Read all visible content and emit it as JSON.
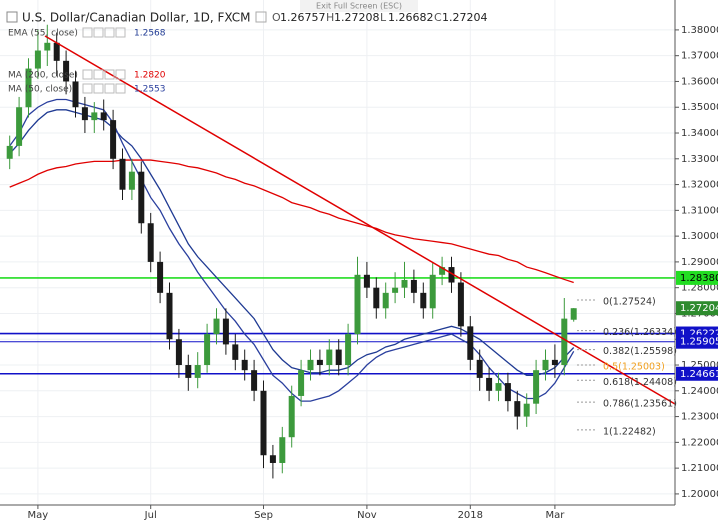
{
  "chart_data": {
    "type": "candlestick",
    "title": "U.S. Dollar/Canadian Dollar, 1D, FXCM",
    "banner": "Exit Full Screen (ESC)",
    "header_keys": [
      "O",
      "H",
      "L",
      "C"
    ],
    "categories": [
      null,
      null,
      null,
      "May",
      null,
      null,
      null,
      null,
      null,
      null,
      null,
      null,
      null,
      null,
      null,
      "Jul",
      null,
      null,
      null,
      null,
      null,
      null,
      null,
      null,
      null,
      null,
      null,
      "Sep",
      null,
      null,
      null,
      null,
      null,
      null,
      null,
      null,
      null,
      null,
      "Nov",
      null,
      null,
      null,
      null,
      null,
      null,
      null,
      null,
      null,
      null,
      "2018",
      null,
      null,
      null,
      null,
      null,
      null,
      null,
      null,
      "Mar",
      null,
      null
    ],
    "open": [
      1.33,
      1.335,
      1.35,
      1.365,
      1.372,
      1.375,
      1.368,
      1.36,
      1.35,
      1.345,
      1.348,
      1.345,
      1.33,
      1.318,
      1.325,
      1.305,
      1.29,
      1.278,
      1.26,
      1.25,
      1.245,
      1.25,
      1.262,
      1.268,
      1.258,
      1.252,
      1.248,
      1.24,
      1.215,
      1.212,
      1.222,
      1.238,
      1.248,
      1.252,
      1.25,
      1.256,
      1.25,
      1.262,
      1.285,
      1.28,
      1.272,
      1.278,
      1.28,
      1.283,
      1.278,
      1.272,
      1.285,
      1.288,
      1.282,
      1.265,
      1.252,
      1.245,
      1.24,
      1.243,
      1.236,
      1.23,
      1.235,
      1.248,
      1.252,
      1.25,
      1.26757
    ],
    "high": [
      1.339,
      1.354,
      1.369,
      1.38,
      1.382,
      1.379,
      1.372,
      1.364,
      1.354,
      1.352,
      1.353,
      1.349,
      1.334,
      1.33,
      1.329,
      1.309,
      1.294,
      1.282,
      1.264,
      1.254,
      1.255,
      1.266,
      1.272,
      1.272,
      1.262,
      1.256,
      1.252,
      1.244,
      1.219,
      1.226,
      1.242,
      1.252,
      1.256,
      1.256,
      1.26,
      1.26,
      1.266,
      1.292,
      1.29,
      1.284,
      1.282,
      1.286,
      1.29,
      1.287,
      1.282,
      1.29,
      1.292,
      1.292,
      1.286,
      1.269,
      1.256,
      1.249,
      1.247,
      1.247,
      1.24,
      1.239,
      1.252,
      1.256,
      1.258,
      1.276,
      1.27208
    ],
    "low": [
      1.326,
      1.331,
      1.346,
      1.361,
      1.366,
      1.362,
      1.355,
      1.346,
      1.34,
      1.34,
      1.341,
      1.326,
      1.314,
      1.314,
      1.301,
      1.286,
      1.274,
      1.256,
      1.245,
      1.24,
      1.241,
      1.247,
      1.258,
      1.254,
      1.248,
      1.244,
      1.236,
      1.21,
      1.206,
      1.208,
      1.218,
      1.234,
      1.244,
      1.246,
      1.246,
      1.246,
      1.246,
      1.258,
      1.276,
      1.268,
      1.268,
      1.274,
      1.276,
      1.274,
      1.268,
      1.268,
      1.281,
      1.278,
      1.261,
      1.248,
      1.24,
      1.236,
      1.236,
      1.232,
      1.225,
      1.226,
      1.231,
      1.244,
      1.245,
      1.246,
      1.26682
    ],
    "close": [
      1.335,
      1.35,
      1.365,
      1.372,
      1.375,
      1.368,
      1.36,
      1.35,
      1.345,
      1.348,
      1.345,
      1.33,
      1.318,
      1.325,
      1.305,
      1.29,
      1.278,
      1.26,
      1.25,
      1.245,
      1.25,
      1.262,
      1.268,
      1.258,
      1.252,
      1.248,
      1.24,
      1.215,
      1.212,
      1.222,
      1.238,
      1.248,
      1.252,
      1.25,
      1.256,
      1.25,
      1.262,
      1.285,
      1.28,
      1.272,
      1.278,
      1.28,
      1.283,
      1.278,
      1.272,
      1.285,
      1.288,
      1.282,
      1.265,
      1.252,
      1.245,
      1.24,
      1.243,
      1.236,
      1.23,
      1.235,
      1.248,
      1.252,
      1.25,
      1.268,
      1.27204
    ],
    "up_color": "#3c9a3c",
    "down_color": "#1a1a1a",
    "series": [
      {
        "name": "EMA (55, close)",
        "last_label": "1.2568",
        "color": "#1f3a93",
        "values": [
          1.332,
          1.336,
          1.341,
          1.345,
          1.348,
          1.349,
          1.349,
          1.348,
          1.347,
          1.346,
          1.345,
          1.342,
          1.338,
          1.335,
          1.33,
          1.324,
          1.318,
          1.311,
          1.304,
          1.297,
          1.292,
          1.288,
          1.284,
          1.28,
          1.276,
          1.272,
          1.268,
          1.262,
          1.256,
          1.252,
          1.249,
          1.248,
          1.247,
          1.247,
          1.248,
          1.248,
          1.249,
          1.252,
          1.254,
          1.255,
          1.257,
          1.258,
          1.26,
          1.261,
          1.262,
          1.263,
          1.264,
          1.265,
          1.264,
          1.262,
          1.26,
          1.257,
          1.254,
          1.251,
          1.248,
          1.246,
          1.246,
          1.247,
          1.249,
          1.253,
          1.2568
        ]
      },
      {
        "name": "MA (200, close)",
        "last_label": "1.2820",
        "color": "#e00000",
        "values": [
          1.319,
          1.3205,
          1.322,
          1.324,
          1.3255,
          1.3265,
          1.327,
          1.328,
          1.3285,
          1.329,
          1.329,
          1.329,
          1.3295,
          1.3295,
          1.3295,
          1.3295,
          1.329,
          1.3285,
          1.328,
          1.327,
          1.3265,
          1.3255,
          1.3245,
          1.323,
          1.322,
          1.3205,
          1.3195,
          1.318,
          1.3165,
          1.315,
          1.313,
          1.312,
          1.311,
          1.3095,
          1.3085,
          1.307,
          1.306,
          1.305,
          1.304,
          1.303,
          1.3015,
          1.3005,
          1.2998,
          1.299,
          1.2985,
          1.298,
          1.2975,
          1.297,
          1.296,
          1.295,
          1.294,
          1.293,
          1.2925,
          1.291,
          1.29,
          1.288,
          1.287,
          1.2858,
          1.2845,
          1.2832,
          1.282
        ]
      },
      {
        "name": "MA (50, close)",
        "last_label": "1.2553",
        "color": "#2a3f9e",
        "values": [
          1.335,
          1.34,
          1.347,
          1.35,
          1.352,
          1.353,
          1.353,
          1.352,
          1.351,
          1.35,
          1.349,
          1.344,
          1.336,
          1.329,
          1.322,
          1.315,
          1.31,
          1.303,
          1.297,
          1.292,
          1.286,
          1.281,
          1.276,
          1.271,
          1.267,
          1.262,
          1.258,
          1.252,
          1.246,
          1.243,
          1.239,
          1.236,
          1.236,
          1.237,
          1.238,
          1.24,
          1.243,
          1.246,
          1.25,
          1.253,
          1.255,
          1.256,
          1.257,
          1.258,
          1.259,
          1.26,
          1.261,
          1.262,
          1.26,
          1.258,
          1.254,
          1.249,
          1.245,
          1.241,
          1.239,
          1.237,
          1.237,
          1.239,
          1.243,
          1.249,
          1.2553
        ]
      }
    ],
    "levels": [
      {
        "value": 1.2838,
        "label": "1.28380",
        "color": "#22dd22"
      },
      {
        "value": 1.26222,
        "label": "1.26222",
        "color": "#1010c8"
      },
      {
        "value": 1.25905,
        "label": "1.25905",
        "color": "#1010c8"
      },
      {
        "value": 1.24661,
        "label": "1.24661",
        "color": "#1010c8"
      }
    ],
    "price_color": "#2e8b2e",
    "fib_levels": [
      {
        "value": 1.27524,
        "label": "0(1.27524)",
        "color": "#333333"
      },
      {
        "value": 1.26334,
        "label": "0.236(1.26334)",
        "color": "#333333"
      },
      {
        "value": 1.25598,
        "label": "0.382(1.25598)",
        "color": "#333333"
      },
      {
        "value": 1.25003,
        "label": "0.5(1.25003)",
        "color": "#f0a020"
      },
      {
        "value": 1.24408,
        "label": "0.618(1.24408)",
        "color": "#333333"
      },
      {
        "value": 1.23561,
        "label": "0.786(1.23561)",
        "color": "#333333"
      },
      {
        "value": 1.22482,
        "label": "1(1.22482)",
        "color": "#333333"
      }
    ],
    "ylim": [
      1.1957,
      1.3916
    ],
    "yticks": [
      {
        "value": 1.38,
        "label": "1.38000"
      },
      {
        "value": 1.37,
        "label": "1.37000"
      },
      {
        "value": 1.36,
        "label": "1.36000"
      },
      {
        "value": 1.35,
        "label": "1.35000"
      },
      {
        "value": 1.34,
        "label": "1.34000"
      },
      {
        "value": 1.33,
        "label": "1.33000"
      },
      {
        "value": 1.32,
        "label": "1.32000"
      },
      {
        "value": 1.31,
        "label": "1.31000"
      },
      {
        "value": 1.3,
        "label": "1.30000"
      },
      {
        "value": 1.29,
        "label": "1.29000"
      },
      {
        "value": 1.28,
        "label": "1.28000"
      },
      {
        "value": 1.27,
        "label": "1.27000"
      },
      {
        "value": 1.26,
        "label": "1.26000"
      },
      {
        "value": 1.25,
        "label": "1.25000"
      },
      {
        "value": 1.24,
        "label": "1.24000"
      },
      {
        "value": 1.23,
        "label": "1.23000"
      },
      {
        "value": 1.22,
        "label": "1.22000"
      },
      {
        "value": 1.21,
        "label": "1.21000"
      },
      {
        "value": 1.2,
        "label": "1.20000"
      }
    ],
    "grid": true
  }
}
